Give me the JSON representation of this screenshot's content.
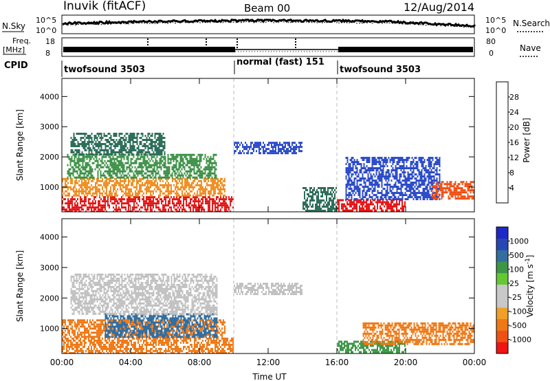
{
  "header": {
    "title": "Inuvik (fitACF)",
    "beam": "Beam 00",
    "date": "12/Aug/2014"
  },
  "top_panels": {
    "nsky_label": "N.Sky",
    "nsearch_label": "N.Search",
    "nsky_ticks": [
      "10^5",
      "10^0"
    ],
    "nsearch_ticks": [
      "10^5",
      "10^0"
    ],
    "freq_label_line1": "Freq.",
    "freq_label_line2": "[MHz]",
    "freq_ticks": [
      "18",
      "8"
    ],
    "nave_label": "Nave",
    "nave_ticks": [
      "80",
      "0"
    ],
    "cpid_label": "CPID",
    "cpid_segments": [
      {
        "label": "twofsound 3503",
        "start": 0,
        "end": 10
      },
      {
        "label": "normal (fast) 151",
        "start": 10,
        "end": 16
      },
      {
        "label": "twofsound 3503",
        "start": 16,
        "end": 24
      }
    ]
  },
  "colors": {
    "power_scale": [
      "#1e1eff",
      "#2848c8",
      "#2e6e5a",
      "#3c9046",
      "#9cc83c",
      "#f0c828",
      "#f08c1e",
      "#f05014",
      "#e61414"
    ],
    "velocity_scale": [
      "#f01414",
      "#f05014",
      "#f07814",
      "#f0a028",
      "#c8c8c8",
      "#c8c8c8",
      "#64c832",
      "#3c9646",
      "#326ea0",
      "#2846b4",
      "#1e28c8"
    ],
    "velocity_ground_scatter": "#c0c0c0"
  },
  "chart_data": [
    {
      "type": "heatmap",
      "panel": "power",
      "xlabel": "Time UT",
      "ylabel": "Slant Range [km]",
      "x_ticks": [
        "00:00",
        "04:00",
        "08:00",
        "12:00",
        "16:00",
        "20:00",
        "00:00"
      ],
      "xlim": [
        0,
        24
      ],
      "y_ticks": [
        "1000",
        "2000",
        "3000",
        "4000"
      ],
      "ylim": [
        180,
        4600
      ],
      "colorbar_label": "Power [dB]",
      "colorbar_ticks": [
        "4",
        "8",
        "12",
        "16",
        "20",
        "24",
        "28"
      ],
      "colorbar_range": [
        0,
        32
      ],
      "mode_boundaries_hours": [
        10,
        16
      ],
      "regions": [
        {
          "t0": 0.0,
          "t1": 10.0,
          "r0": 200,
          "r1": 700,
          "value": 29
        },
        {
          "t0": 0.0,
          "t1": 9.5,
          "r0": 700,
          "r1": 1300,
          "value": 22
        },
        {
          "t0": 0.3,
          "t1": 9.0,
          "r0": 1300,
          "r1": 2100,
          "value": 14
        },
        {
          "t0": 0.5,
          "t1": 6.0,
          "r0": 2100,
          "r1": 2800,
          "value": 8
        },
        {
          "t0": 10.0,
          "t1": 14.0,
          "r0": 2100,
          "r1": 2500,
          "value": 4
        },
        {
          "t0": 14.0,
          "t1": 16.0,
          "r0": 200,
          "r1": 1000,
          "value": 10
        },
        {
          "t0": 16.0,
          "t1": 20.0,
          "r0": 200,
          "r1": 600,
          "value": 29
        },
        {
          "t0": 16.5,
          "t1": 22.0,
          "r0": 600,
          "r1": 2000,
          "value": 6
        },
        {
          "t0": 21.5,
          "t1": 24.0,
          "r0": 600,
          "r1": 1200,
          "value": 26
        }
      ]
    },
    {
      "type": "heatmap",
      "panel": "velocity",
      "xlabel": "Time UT",
      "ylabel": "Slant Range [km]",
      "x_ticks": [
        "00:00",
        "04:00",
        "08:00",
        "12:00",
        "16:00",
        "20:00",
        "00:00"
      ],
      "xlim": [
        0,
        24
      ],
      "y_ticks": [
        "1000",
        "2000",
        "3000",
        "4000"
      ],
      "ylim": [
        180,
        4600
      ],
      "colorbar_label": "Velocity [m s^-1]",
      "colorbar_ticks": [
        "1000",
        "500",
        "100",
        "25",
        "-25",
        "-100",
        "-500",
        "-1000"
      ],
      "colorbar_range": [
        -1000,
        1000
      ],
      "mode_boundaries_hours": [
        10,
        16
      ],
      "regions": [
        {
          "t0": 0.0,
          "t1": 10.0,
          "r0": 200,
          "r1": 700,
          "value": -250
        },
        {
          "t0": 0.0,
          "t1": 9.5,
          "r0": 700,
          "r1": 1300,
          "value": -150
        },
        {
          "t0": 2.5,
          "t1": 9.0,
          "r0": 700,
          "r1": 1500,
          "value": 300
        },
        {
          "t0": 0.5,
          "t1": 9.0,
          "r0": 1500,
          "r1": 2800,
          "value": 0
        },
        {
          "t0": 10.0,
          "t1": 14.0,
          "r0": 2100,
          "r1": 2500,
          "value": 0
        },
        {
          "t0": 16.0,
          "t1": 20.0,
          "r0": 200,
          "r1": 600,
          "value": 80
        },
        {
          "t0": 17.5,
          "t1": 24.0,
          "r0": 500,
          "r1": 1200,
          "value": -200
        }
      ]
    }
  ]
}
